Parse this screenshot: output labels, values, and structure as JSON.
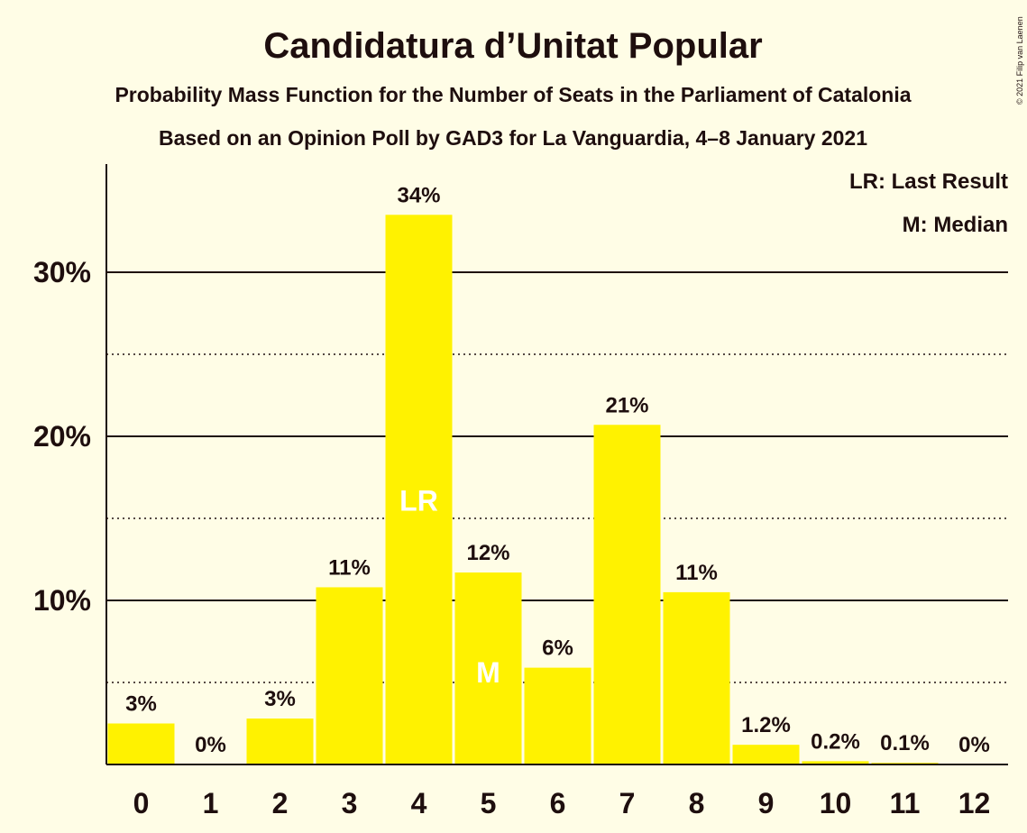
{
  "chart_data": {
    "type": "bar",
    "title": "Candidatura d’Unitat Popular",
    "subtitle_lines": [
      "Probability Mass Function for the Number of Seats in the Parliament of Catalonia",
      "Based on an Opinion Poll by GAD3 for La Vanguardia, 4–8 January 2021"
    ],
    "copyright": "© 2021 Filip van Laenen",
    "xlabel": "",
    "ylabel": "",
    "categories": [
      "0",
      "1",
      "2",
      "3",
      "4",
      "5",
      "6",
      "7",
      "8",
      "9",
      "10",
      "11",
      "12"
    ],
    "values": [
      2.5,
      0,
      2.8,
      10.8,
      33.5,
      11.7,
      5.9,
      20.7,
      10.5,
      1.2,
      0.2,
      0.1,
      0
    ],
    "data_labels": [
      "3%",
      "0%",
      "3%",
      "11%",
      "34%",
      "12%",
      "6%",
      "21%",
      "11%",
      "1.2%",
      "0.2%",
      "0.1%",
      "0%"
    ],
    "ylim": [
      0,
      36.5
    ],
    "yticks": [
      {
        "value": 10,
        "label": "10%"
      },
      {
        "value": 20,
        "label": "20%"
      },
      {
        "value": 30,
        "label": "30%"
      }
    ],
    "minor_gridlines": [
      5,
      15,
      25
    ],
    "grid": true,
    "bar_color": "#FFF200",
    "markers": [
      {
        "category": "4",
        "text": "LR",
        "meaning": "Last Result"
      },
      {
        "category": "5",
        "text": "M",
        "meaning": "Median"
      }
    ],
    "legend": {
      "position": "top-right",
      "entries": [
        "LR: Last Result",
        "M: Median"
      ]
    }
  }
}
